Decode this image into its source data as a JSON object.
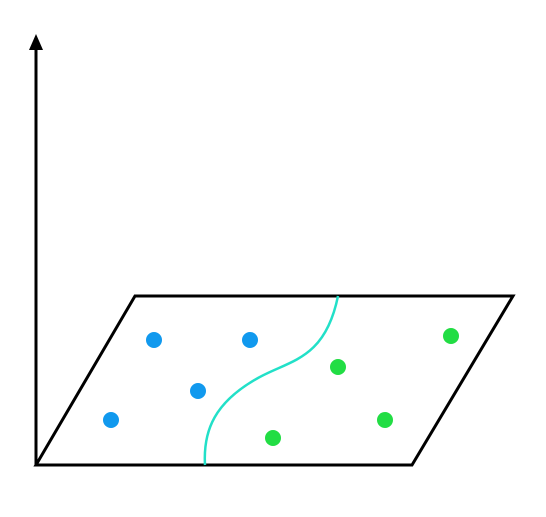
{
  "diagram": {
    "type": "classification-plane",
    "colors": {
      "axis": "#000000",
      "plane_edge": "#000000",
      "decision_boundary": "#22e0c8",
      "class_a": "#1199ee",
      "class_b": "#22dd44"
    },
    "classes": [
      {
        "id": "class-a",
        "color_key": "class_a",
        "point_count": 4
      },
      {
        "id": "class-b",
        "color_key": "class_b",
        "point_count": 4
      }
    ]
  }
}
